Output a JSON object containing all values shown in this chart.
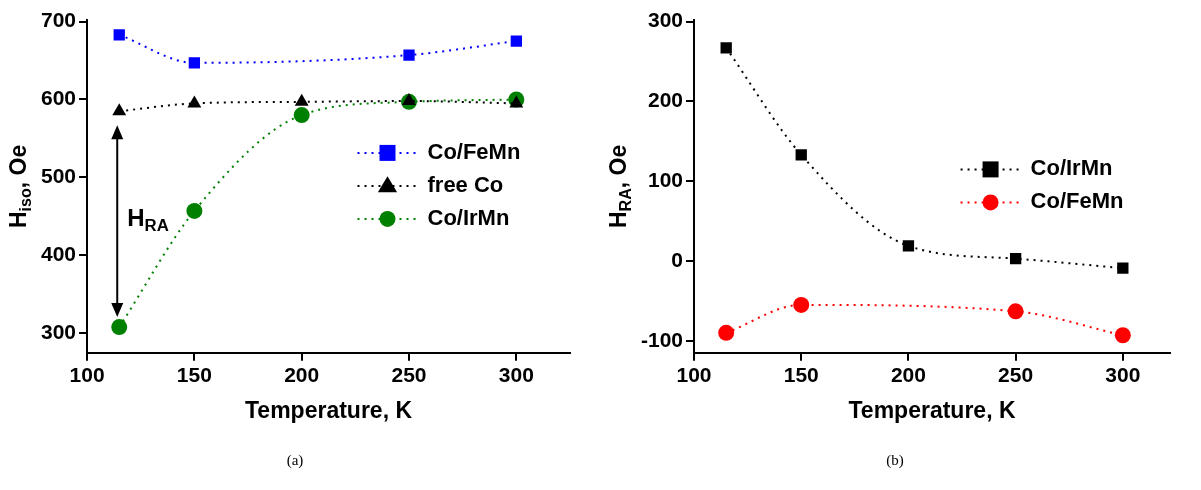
{
  "chart_data": [
    {
      "type": "line",
      "xlabel": "Temperature, K",
      "ylabel": "H$_{iso}$, Oe",
      "x": [
        115,
        150,
        200,
        250,
        300
      ],
      "xlim": [
        100,
        325
      ],
      "xticks": [
        100,
        150,
        200,
        250,
        300
      ],
      "ylim": [
        275,
        702
      ],
      "yticks": [
        300,
        400,
        500,
        600,
        700
      ],
      "grid": false,
      "legend": "right",
      "line_style": "dotted",
      "series": [
        {
          "name": "Co/FeMn",
          "color": "#0000ff",
          "marker": "square",
          "x": [
            115,
            150,
            250,
            300
          ],
          "values": [
            683,
            647,
            657,
            675
          ]
        },
        {
          "name": "free Co",
          "color": "#000000",
          "marker": "triangle",
          "values": [
            585,
            595,
            597,
            598,
            595
          ]
        },
        {
          "name": "Co/IrMn",
          "color": "#008000",
          "marker": "circle",
          "values": [
            308,
            457,
            580,
            597,
            600
          ]
        }
      ],
      "annotations": [
        "H$_{RA}$",
        "(a)"
      ]
    },
    {
      "type": "line",
      "xlabel": "Temperature, K",
      "ylabel": "H$_{RA}$, Oe",
      "x": [
        115,
        150,
        200,
        250,
        300
      ],
      "xlim": [
        100,
        322
      ],
      "xticks": [
        100,
        150,
        200,
        250,
        300
      ],
      "ylim": [
        -115,
        302
      ],
      "yticks": [
        -100,
        0,
        100,
        200,
        300
      ],
      "grid": false,
      "legend": "right",
      "line_style": "dotted",
      "series": [
        {
          "name": "Co/IrMn",
          "color": "#000000",
          "marker": "square",
          "values": [
            267,
            133,
            19,
            3,
            -9
          ]
        },
        {
          "name": "Co/FeMn",
          "color": "#ff0000",
          "marker": "circle",
          "x": [
            115,
            150,
            250,
            300
          ],
          "values": [
            -90,
            -55,
            -63,
            -93
          ]
        }
      ],
      "annotations": [
        "(b)"
      ]
    }
  ]
}
